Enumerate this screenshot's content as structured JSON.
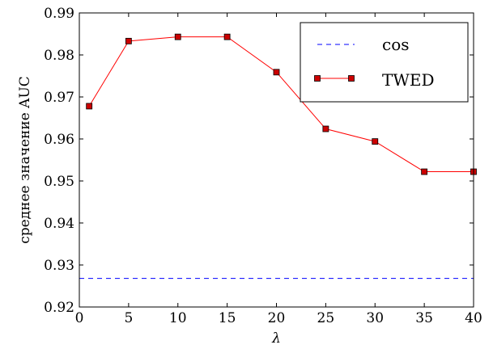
{
  "chart_data": {
    "type": "line",
    "xlabel": "λ",
    "ylabel": "среднее значение AUC",
    "xlim": [
      0,
      40
    ],
    "ylim": [
      0.92,
      0.99
    ],
    "x_ticks": [
      0,
      5,
      10,
      15,
      20,
      25,
      30,
      35,
      40
    ],
    "y_ticks": [
      0.92,
      0.93,
      0.94,
      0.95,
      0.96,
      0.97,
      0.98,
      0.99
    ],
    "x_tick_labels": [
      "0",
      "5",
      "10",
      "15",
      "20",
      "25",
      "30",
      "35",
      "40"
    ],
    "y_tick_labels": [
      "0.92",
      "0.93",
      "0.94",
      "0.95",
      "0.96",
      "0.97",
      "0.98",
      "0.99"
    ],
    "grid": false,
    "legend": "top-right",
    "series": [
      {
        "name": "cos",
        "style": "dashed",
        "color": "#0000ff",
        "x": [
          0,
          40
        ],
        "y": [
          0.9268,
          0.9268
        ]
      },
      {
        "name": "TWED",
        "style": "solid-square-markers",
        "color": "#ff0000",
        "marker_color": "#cc0000",
        "x": [
          1,
          5,
          10,
          15,
          20,
          25,
          30,
          35,
          40
        ],
        "y": [
          0.9678,
          0.9833,
          0.9843,
          0.9843,
          0.9759,
          0.9624,
          0.9594,
          0.9522,
          0.9522
        ]
      }
    ]
  }
}
